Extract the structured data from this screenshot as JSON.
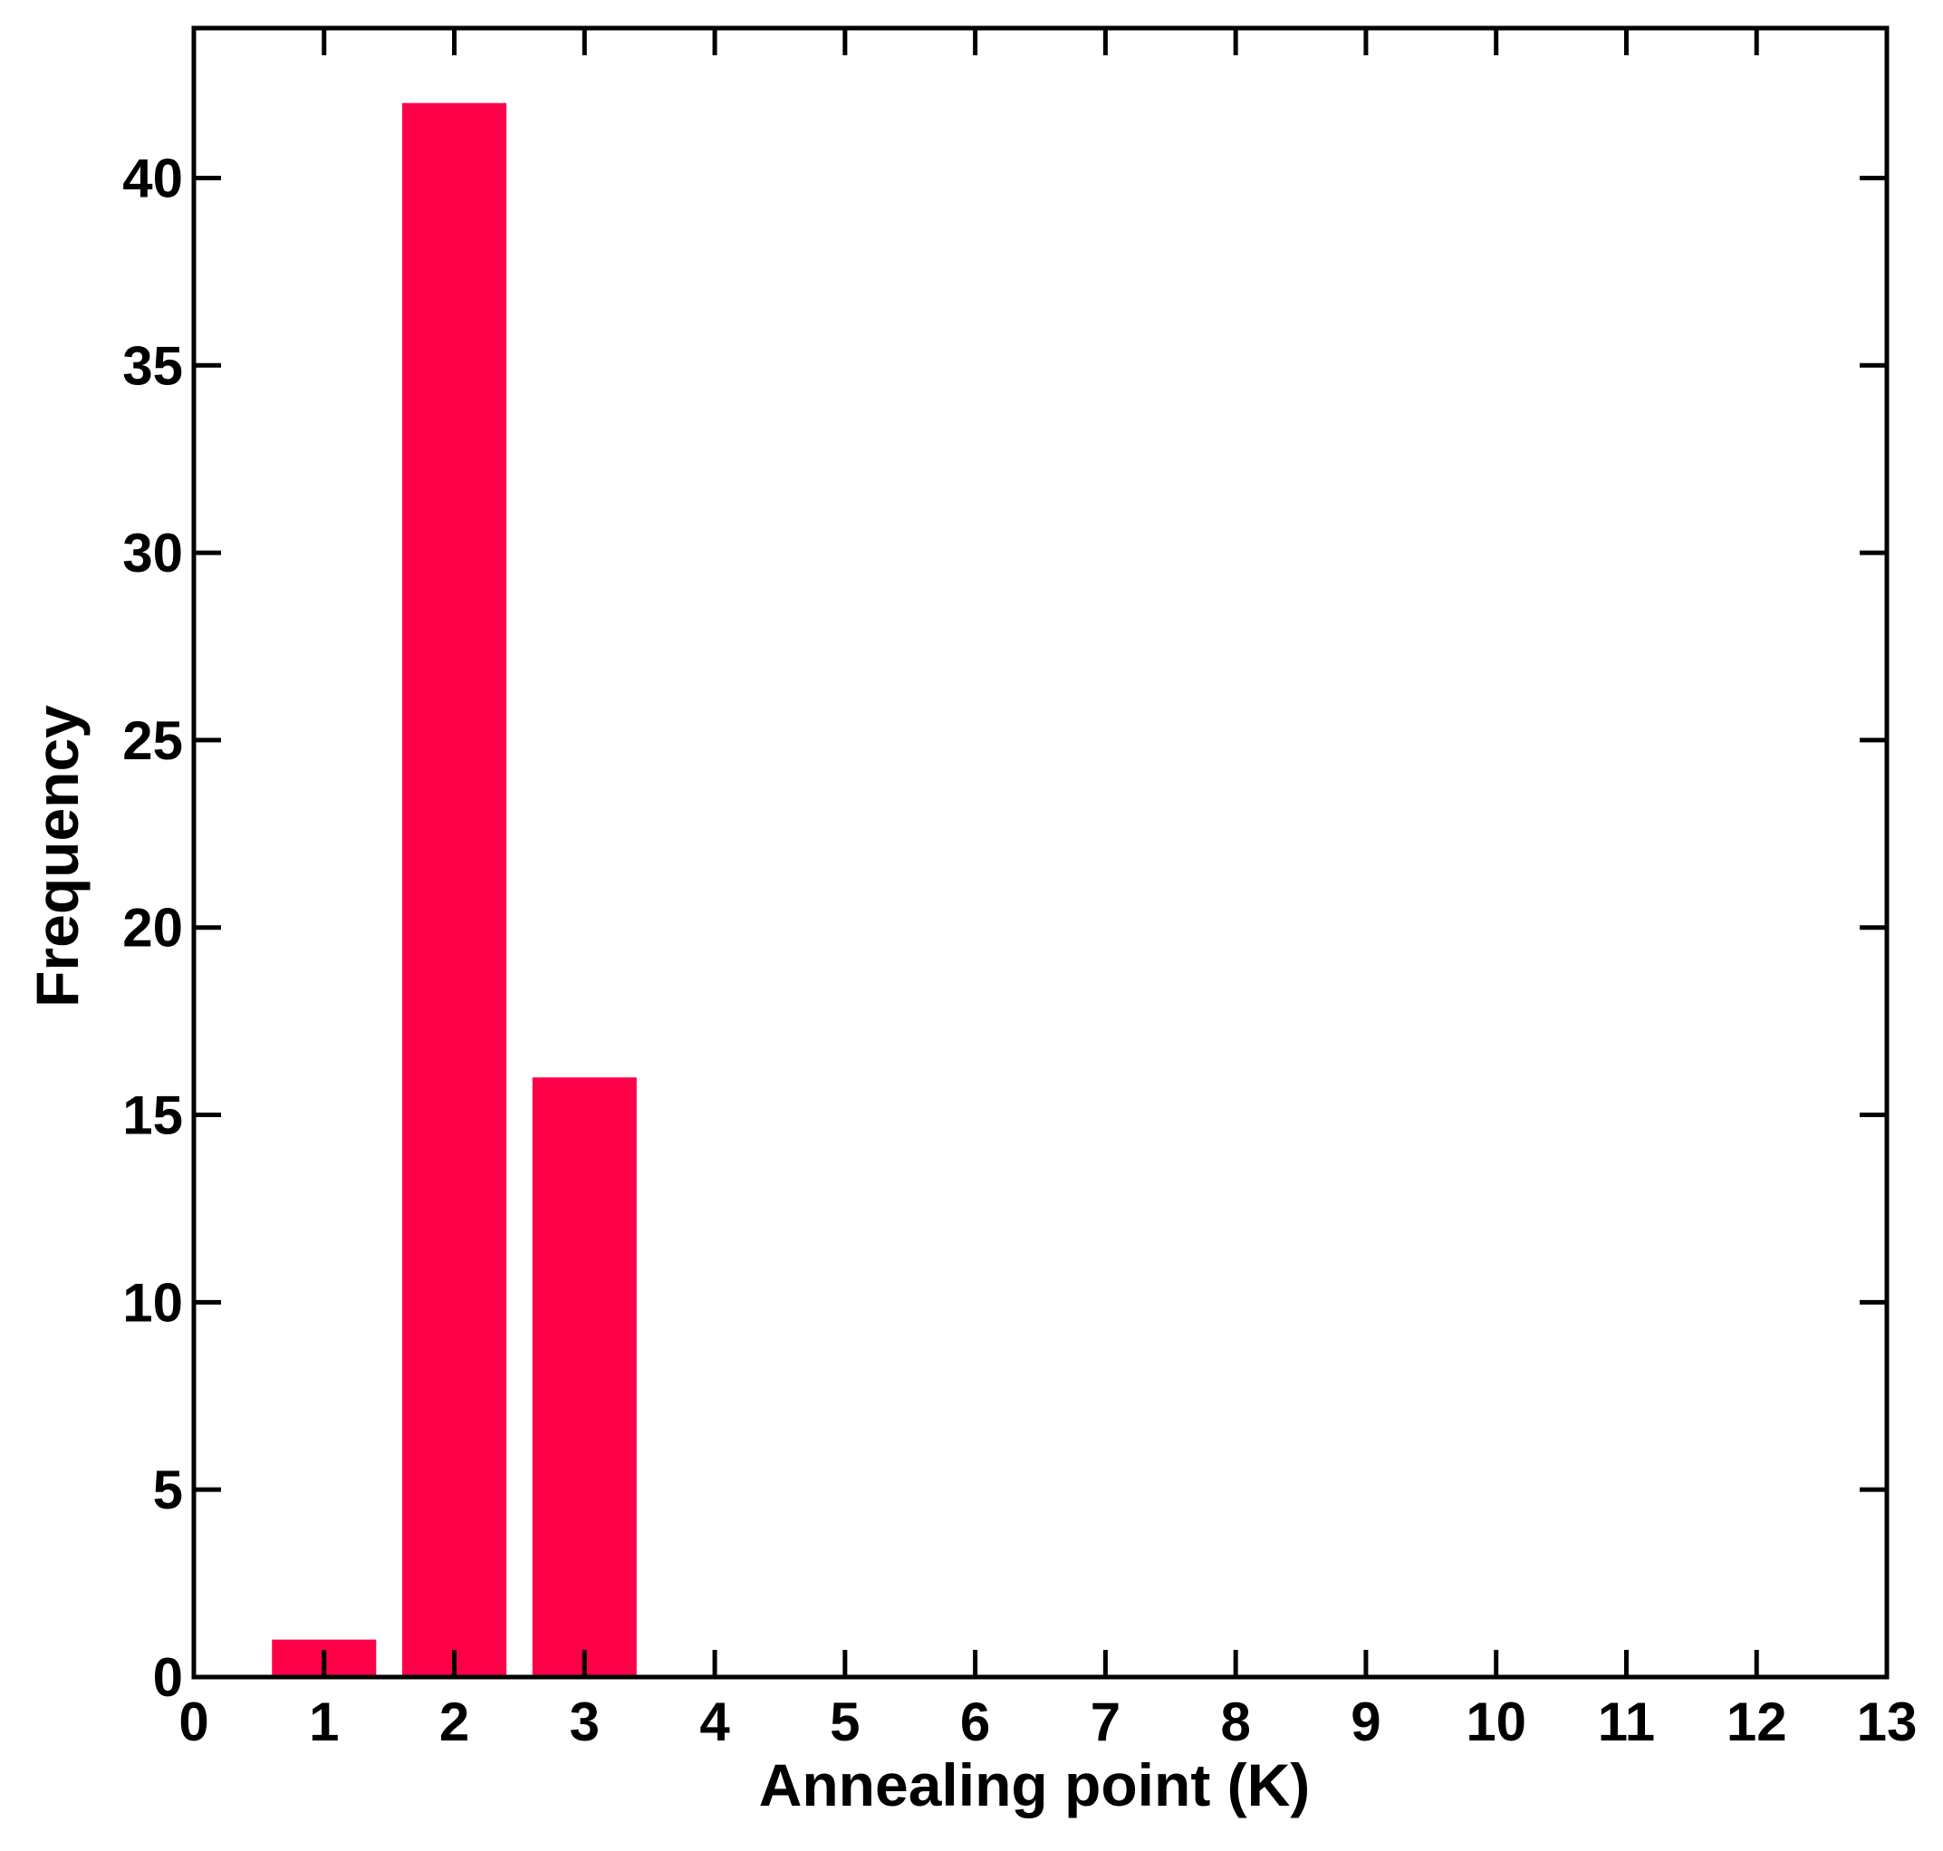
{
  "chart_data": {
    "type": "bar",
    "x": [
      1,
      2,
      3
    ],
    "values": [
      1,
      42,
      16
    ],
    "xlabel": "Annealing point (K)",
    "ylabel": "Frequency",
    "xlim": [
      0,
      13
    ],
    "ylim": [
      0,
      44
    ],
    "xticks": [
      "0",
      "1",
      "2",
      "3",
      "4",
      "5",
      "6",
      "7",
      "8",
      "9",
      "10",
      "11",
      "12",
      "13"
    ],
    "yticks": [
      "0",
      "5",
      "10",
      "15",
      "20",
      "25",
      "30",
      "35",
      "40"
    ],
    "bar_color": "#ff0048",
    "axis_color": "#000000",
    "grid": false,
    "legend": "none"
  }
}
